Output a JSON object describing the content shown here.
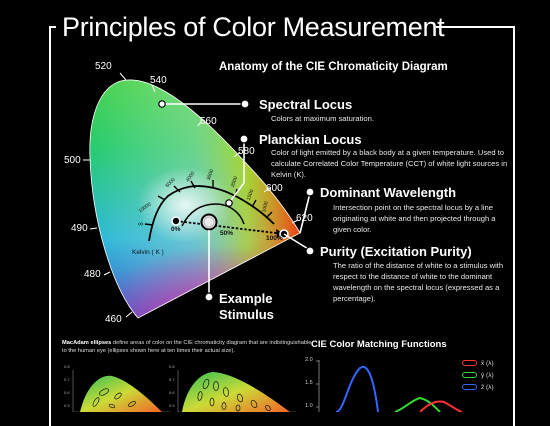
{
  "title": "Principles of Color Measurement",
  "diagram": {
    "subtitle": "Anatomy of the CIE Chromaticity Diagram",
    "wavelengths": [
      "520",
      "540",
      "560",
      "580",
      "600",
      "620",
      "500",
      "490",
      "480",
      "460"
    ],
    "planckian_labels": [
      "1000",
      "1500",
      "2000",
      "3000",
      "4000",
      "6000",
      "10000",
      "∞"
    ],
    "kelvin_label": "Kelvin ( K )",
    "purity_ticks": [
      "0%",
      "50%",
      "100%"
    ],
    "callouts": {
      "spectral_locus": {
        "heading": "Spectral Locus",
        "text": "Colors at maximum saturation."
      },
      "planckian_locus": {
        "heading": "Planckian Locus",
        "text": "Color of light emitted by a black body at a given temperature. Used to calculate Correlated Color Temperature (CCT) of white light sources in Kelvin (K)."
      },
      "dominant_wavelength": {
        "heading": "Dominant Wavelength",
        "text": "Intersection point on the spectral locus by a line originating at white and then projected through a given color."
      },
      "purity": {
        "heading": "Purity (Excitation Purity)",
        "text": "The ratio of the distance of white to a stimulus with respect to the distance of white to the dominant wavelength on the spectral locus (expressed as a percentage)."
      },
      "example_stimulus": {
        "line1": "Example",
        "line2": "Stimulus"
      }
    }
  },
  "macadam": {
    "bold": "MacAdam ellipses",
    "text": " define areas of color on the CIE chromaticity diagram that are indistinguishable to the human eye (ellipses shown here at ten times their actual size).",
    "ticks_left": [
      "0.8",
      "0.7",
      "0.6",
      "0.5"
    ],
    "ticks_right": [
      "0.8",
      "0.7",
      "0.6",
      "0.5"
    ]
  },
  "cmf": {
    "title": "CIE Color Matching Functions",
    "y_ticks": [
      "2.0",
      "1.5",
      "1.0"
    ],
    "legend": [
      {
        "label": "x̄ (λ)",
        "color": "#ff3333"
      },
      {
        "label": "ȳ (λ)",
        "color": "#33dd33"
      },
      {
        "label": "z̄ (λ)",
        "color": "#3366ff"
      }
    ]
  }
}
